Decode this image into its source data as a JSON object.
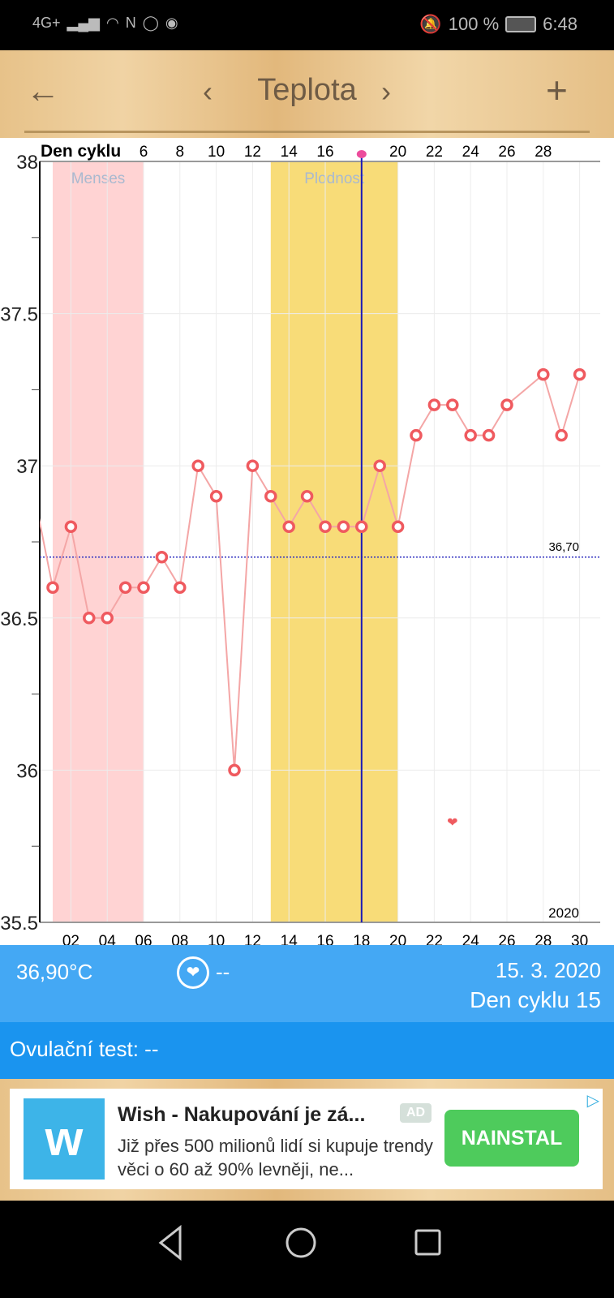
{
  "status_bar": {
    "network": "4G+",
    "battery": "100 %",
    "time": "6:48"
  },
  "header": {
    "title": "Teplota"
  },
  "chart_data": {
    "type": "line",
    "title": "Teplota",
    "top_axis_label": "Den cyklu",
    "top_ticks": [
      "6",
      "8",
      "10",
      "12",
      "14",
      "16",
      "",
      "20",
      "22",
      "24",
      "26",
      "28"
    ],
    "top_tick_days": [
      6,
      8,
      10,
      12,
      14,
      16,
      18,
      20,
      22,
      24,
      26,
      28
    ],
    "bottom_ticks": [
      "02",
      "04",
      "06",
      "08",
      "10",
      "12",
      "14",
      "16",
      "18",
      "20",
      "22",
      "24",
      "26",
      "28",
      "30"
    ],
    "y_ticks": [
      "38",
      "37.5",
      "37",
      "36.5",
      "36",
      "35.5"
    ],
    "ylim": [
      35.5,
      38
    ],
    "xlim": [
      0.3,
      30.2
    ],
    "year_label": "2020",
    "series": [
      {
        "name": "Teplota",
        "color": "#f4a6a6",
        "marker_color": "#ef5a5f",
        "days": [
          0,
          1,
          2,
          3,
          4,
          5,
          6,
          7,
          8,
          9,
          10,
          11,
          12,
          13,
          14,
          15,
          16,
          17,
          18,
          19,
          20,
          21,
          22,
          23,
          24,
          25,
          26,
          28,
          29,
          30
        ],
        "values": [
          36.9,
          36.6,
          36.8,
          36.5,
          36.5,
          36.6,
          36.6,
          36.7,
          36.6,
          37.0,
          36.9,
          36.0,
          37.0,
          36.9,
          36.8,
          36.9,
          36.8,
          36.8,
          36.8,
          37.0,
          36.8,
          37.1,
          37.2,
          37.2,
          37.1,
          37.1,
          37.2,
          37.3,
          37.1,
          37.3
        ]
      }
    ],
    "bands": [
      {
        "label": "Menses",
        "from": 1,
        "to": 6,
        "color": "#ffd3d3"
      },
      {
        "label": "Plodnost",
        "from": 13,
        "to": 20,
        "color": "#f8dc78"
      }
    ],
    "ovulation_day": 18,
    "coverline": {
      "value": 36.7,
      "label": "36,70"
    },
    "heart_marker": {
      "day": 23,
      "value": 35.83
    }
  },
  "info": {
    "temperature": "36,90°C",
    "heart_value": "--",
    "date": "15. 3. 2020",
    "cycle_day": "Den cyklu 15"
  },
  "ovulation_test": "Ovulační test: --",
  "ad": {
    "title": "Wish - Nakupování je zá...",
    "badge": "AD",
    "text": "Již přes 500 milionů lidí si kupuje trendy věci o 60 až 90% levněji, ne...",
    "button": "NAINSTAL"
  }
}
